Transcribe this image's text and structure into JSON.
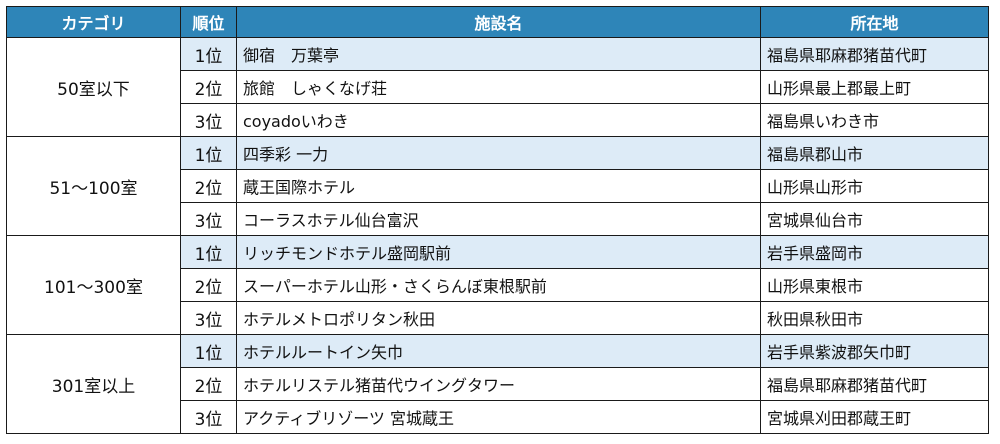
{
  "header": {
    "category": "カテゴリ",
    "rank": "順位",
    "facility": "施設名",
    "location": "所在地"
  },
  "groups": [
    {
      "category": "50室以下",
      "rows": [
        {
          "rank": "1位",
          "facility": "御宿　万葉亭",
          "location": "福島県耶麻郡猪苗代町"
        },
        {
          "rank": "2位",
          "facility": "旅館　しゃくなげ荘",
          "location": "山形県最上郡最上町"
        },
        {
          "rank": "3位",
          "facility": "coyadoいわき",
          "location": "福島県いわき市"
        }
      ]
    },
    {
      "category": "51～100室",
      "rows": [
        {
          "rank": "1位",
          "facility": "四季彩 一力",
          "location": "福島県郡山市"
        },
        {
          "rank": "2位",
          "facility": "蔵王国際ホテル",
          "location": "山形県山形市"
        },
        {
          "rank": "3位",
          "facility": "コーラスホテル仙台富沢",
          "location": "宮城県仙台市"
        }
      ]
    },
    {
      "category": "101～300室",
      "rows": [
        {
          "rank": "1位",
          "facility": "リッチモンドホテル盛岡駅前",
          "location": "岩手県盛岡市"
        },
        {
          "rank": "2位",
          "facility": "スーパーホテル山形・さくらんぼ東根駅前",
          "location": "山形県東根市"
        },
        {
          "rank": "3位",
          "facility": "ホテルメトロポリタン秋田",
          "location": "秋田県秋田市"
        }
      ]
    },
    {
      "category": "301室以上",
      "rows": [
        {
          "rank": "1位",
          "facility": "ホテルルートイン矢巾",
          "location": "岩手県紫波郡矢巾町"
        },
        {
          "rank": "2位",
          "facility": "ホテルリステル猪苗代ウイングタワー",
          "location": "福島県耶麻郡猪苗代町"
        },
        {
          "rank": "3位",
          "facility": "アクティブリゾーツ 宮城蔵王",
          "location": "宮城県刈田郡蔵王町"
        }
      ]
    }
  ],
  "colors": {
    "header_bg": "#2e85b8",
    "header_text": "#ffffff",
    "row_shade": "#ddebf7",
    "row_plain": "#ffffff"
  }
}
